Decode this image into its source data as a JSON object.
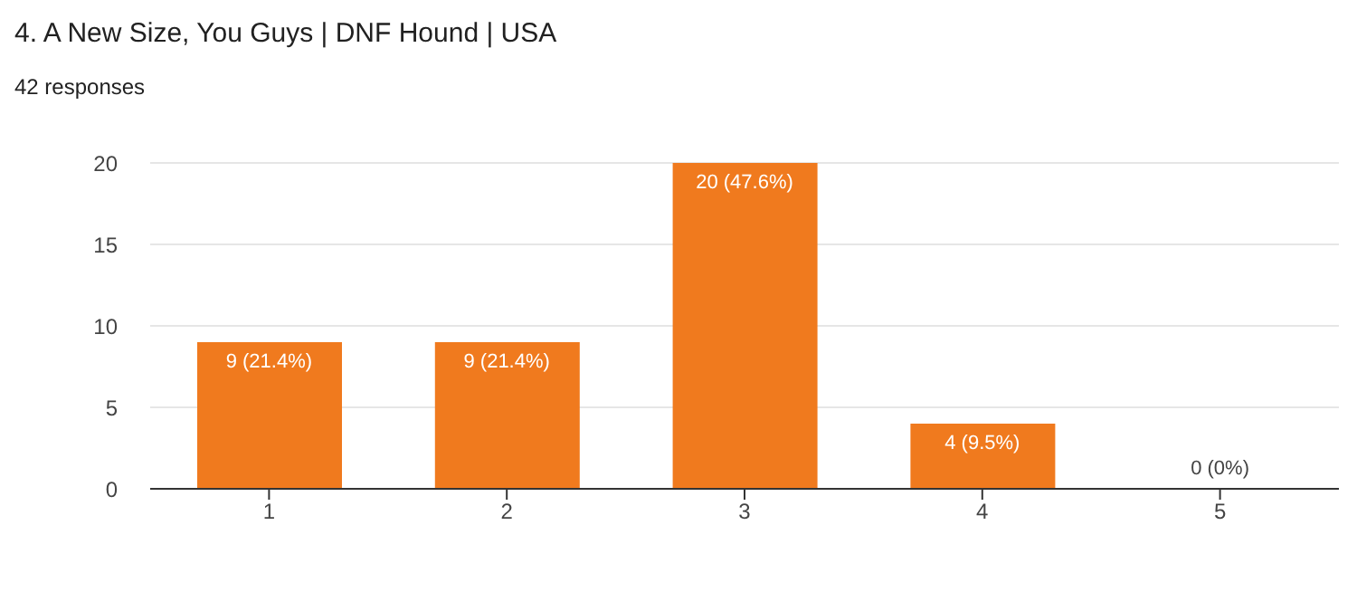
{
  "chart_data": {
    "type": "bar",
    "title": "4. A New Size, You Guys | DNF Hound | USA",
    "subtitle": "42 responses",
    "categories": [
      "1",
      "2",
      "3",
      "4",
      "5"
    ],
    "values": [
      9,
      9,
      20,
      4,
      0
    ],
    "value_labels": [
      "9 (21.4%)",
      "9 (21.4%)",
      "20 (47.6%)",
      "4 (9.5%)",
      "0 (0%)"
    ],
    "color": "#f07a1e",
    "ylim": [
      0,
      20
    ],
    "yticks": [
      0,
      5,
      10,
      15,
      20
    ],
    "grid": "y"
  }
}
